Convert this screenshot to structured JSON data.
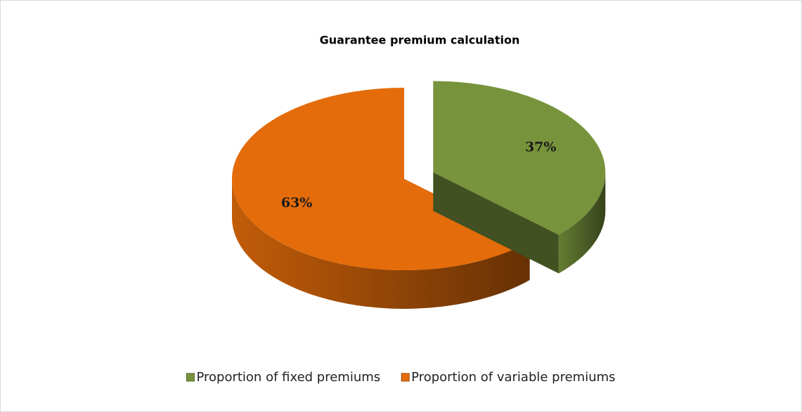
{
  "chart_data": {
    "type": "pie",
    "title": "Guarantee premium calculation",
    "categories": [
      "Proportion of fixed premiums",
      "Proportion of variable premiums"
    ],
    "values": [
      37,
      63
    ],
    "value_labels": [
      "37%",
      "63%"
    ],
    "colors": [
      "#77933c",
      "#e46c0a"
    ],
    "legend": "bottom",
    "exploded": [
      true,
      false
    ]
  }
}
